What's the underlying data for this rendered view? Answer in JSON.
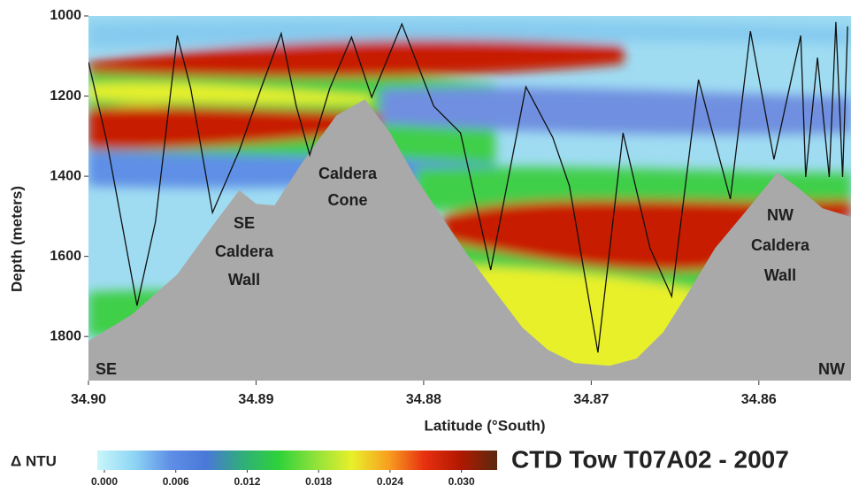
{
  "chart_data": {
    "type": "contour",
    "title": "CTD Tow T07A02 - 2007",
    "x_label": "Latitude (°South)",
    "y_label": "Depth (meters)",
    "colorbar_label": "Δ NTU",
    "xlim": [
      34.9,
      34.8545
    ],
    "ylim": [
      1000,
      1910
    ],
    "xticks": [
      {
        "value": 34.9,
        "label": "34.90"
      },
      34.89,
      34.88,
      34.87,
      34.86
    ],
    "yticks": [
      1000,
      1200,
      1400,
      1600,
      1800
    ],
    "clim": [
      0,
      0.033
    ],
    "cticks": [
      {
        "value": 0,
        "label": "0.000"
      },
      0.006,
      0.012,
      0.018,
      0.024,
      {
        "value": 0.03,
        "label": "0.030"
      }
    ],
    "colormap": [
      "#c8f6fb",
      "#8fd6f4",
      "#5f8fe6",
      "#4a78d8",
      "#2fae7a",
      "#2fd23a",
      "#8fe23a",
      "#e8f02a",
      "#f8a020",
      "#e83010",
      "#b01800",
      "#5a2a10"
    ],
    "seafloor_color": "#a9a9a9",
    "track_color": "#111111",
    "annotations": [
      {
        "lines": [
          "SE",
          "Caldera",
          "Wall"
        ]
      },
      {
        "lines": [
          "Caldera",
          "Cone"
        ]
      },
      {
        "lines": [
          "NW",
          "Caldera",
          "Wall"
        ]
      },
      {
        "lines": [
          "SE"
        ]
      },
      {
        "lines": [
          "NW"
        ]
      }
    ],
    "seafloor": {
      "lat": [
        34.9,
        34.8974,
        34.8947,
        34.8926,
        34.891,
        34.89,
        34.8889,
        34.8873,
        34.8852,
        34.8835,
        34.882,
        34.8805,
        34.8789,
        34.8773,
        34.8757,
        34.8741,
        34.8726,
        34.871,
        34.8689,
        34.8673,
        34.8657,
        34.8642,
        34.8626,
        34.8604,
        34.8589,
        34.8578,
        34.8562,
        34.8545
      ],
      "depth": [
        1811,
        1745,
        1645,
        1524,
        1435,
        1469,
        1473,
        1369,
        1248,
        1208,
        1292,
        1402,
        1502,
        1601,
        1690,
        1778,
        1833,
        1866,
        1873,
        1855,
        1789,
        1690,
        1579,
        1469,
        1391,
        1424,
        1480,
        1502
      ]
    },
    "track": {
      "lat": [
        34.9,
        34.8989,
        34.8971,
        34.896,
        34.8947,
        34.8939,
        34.8926,
        34.891,
        34.8897,
        34.8885,
        34.8876,
        34.8868,
        34.8856,
        34.8843,
        34.8831,
        34.8813,
        34.8794,
        34.8778,
        34.876,
        34.8739,
        34.8723,
        34.8713,
        34.8696,
        34.8681,
        34.8665,
        34.8652,
        34.8636,
        34.8617,
        34.8605,
        34.8591,
        34.8575,
        34.8572,
        34.8565,
        34.8558,
        34.8554,
        34.855,
        34.8547
      ],
      "depth": [
        1115,
        1314,
        1723,
        1513,
        1049,
        1181,
        1491,
        1336,
        1181,
        1044,
        1225,
        1347,
        1181,
        1053,
        1203,
        1020,
        1225,
        1292,
        1634,
        1177,
        1303,
        1424,
        1840,
        1292,
        1579,
        1700,
        1159,
        1457,
        1038,
        1358,
        1049,
        1402,
        1104,
        1402,
        1015,
        1402,
        1026
      ]
    }
  }
}
